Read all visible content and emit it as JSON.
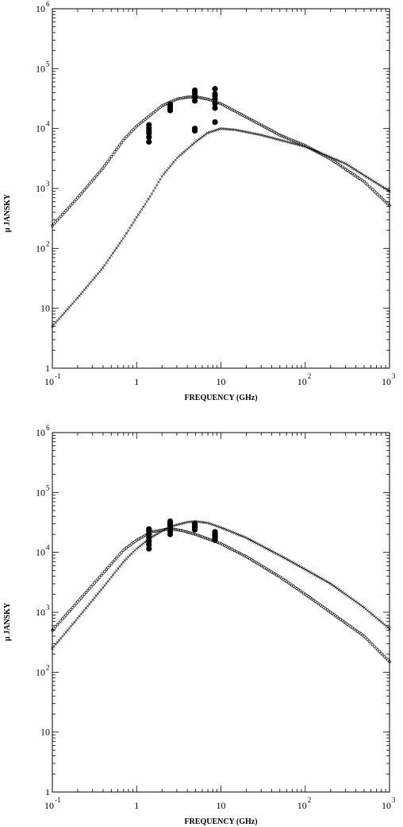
{
  "chart_data": [
    {
      "type": "scatter",
      "xscale": "log",
      "yscale": "log",
      "xlim": [
        0.1,
        1000
      ],
      "ylim": [
        1,
        1000000
      ],
      "xlabel": "FREQUENCY (GHz)",
      "ylabel": "µ JANSKY",
      "x_tick_labels": [
        {
          "base": "10",
          "exp": "-1"
        },
        {
          "base": "1",
          "exp": ""
        },
        {
          "base": "10",
          "exp": ""
        },
        {
          "base": "10",
          "exp": "2"
        },
        {
          "base": "10",
          "exp": "3"
        }
      ],
      "y_tick_labels": [
        {
          "base": "1",
          "exp": ""
        },
        {
          "base": "10",
          "exp": ""
        },
        {
          "base": "10",
          "exp": "2"
        },
        {
          "base": "10",
          "exp": "3"
        },
        {
          "base": "10",
          "exp": "4"
        },
        {
          "base": "10",
          "exp": "5"
        },
        {
          "base": "10",
          "exp": "6"
        }
      ],
      "series": [
        {
          "marker": "circle",
          "points": [
            [
              0.1,
              240
            ],
            [
              0.2,
              700
            ],
            [
              0.4,
              2200
            ],
            [
              0.7,
              6500
            ],
            [
              1.0,
              11000
            ],
            [
              1.4,
              16000
            ],
            [
              2.0,
              24000
            ],
            [
              3.0,
              31000
            ],
            [
              4.0,
              33500
            ],
            [
              5.0,
              34000
            ],
            [
              7.0,
              31000
            ],
            [
              10,
              26000
            ],
            [
              20,
              15500
            ],
            [
              50,
              7800
            ],
            [
              100,
              5200
            ],
            [
              200,
              3100
            ],
            [
              500,
              1300
            ],
            [
              1000,
              520
            ]
          ]
        },
        {
          "marker": "cross",
          "points": [
            [
              0.1,
              5
            ],
            [
              0.2,
              15
            ],
            [
              0.4,
              48
            ],
            [
              0.7,
              150
            ],
            [
              1.0,
              330
            ],
            [
              1.5,
              800
            ],
            [
              2.0,
              1600
            ],
            [
              3.0,
              3200
            ],
            [
              5.0,
              6000
            ],
            [
              7.0,
              8500
            ],
            [
              10,
              10000
            ],
            [
              15,
              9500
            ],
            [
              30,
              7800
            ],
            [
              100,
              5000
            ],
            [
              300,
              2600
            ],
            [
              1000,
              900
            ]
          ]
        },
        {
          "marker": "filled",
          "points": [
            [
              1.4,
              6000
            ],
            [
              1.4,
              7200
            ],
            [
              1.4,
              8300
            ],
            [
              1.4,
              9200
            ],
            [
              1.4,
              10200
            ],
            [
              1.4,
              11500
            ],
            [
              2.5,
              20000
            ],
            [
              2.5,
              22000
            ],
            [
              2.5,
              24000
            ],
            [
              2.5,
              25500
            ],
            [
              4.9,
              9200
            ],
            [
              4.9,
              10000
            ],
            [
              4.9,
              29000
            ],
            [
              4.9,
              33000
            ],
            [
              4.9,
              36000
            ],
            [
              4.9,
              40000
            ],
            [
              4.9,
              43500
            ],
            [
              8.5,
              12800
            ],
            [
              8.5,
              22000
            ],
            [
              8.5,
              26000
            ],
            [
              8.5,
              31000
            ],
            [
              8.5,
              35000
            ],
            [
              8.5,
              38000
            ],
            [
              8.5,
              46000
            ]
          ]
        }
      ]
    },
    {
      "type": "scatter",
      "xscale": "log",
      "yscale": "log",
      "xlim": [
        0.1,
        1000
      ],
      "ylim": [
        1,
        1000000
      ],
      "xlabel": "FREQUENCY (GHz)",
      "ylabel": "µ JANSKY",
      "x_tick_labels": [
        {
          "base": "10",
          "exp": "-1"
        },
        {
          "base": "1",
          "exp": ""
        },
        {
          "base": "10",
          "exp": ""
        },
        {
          "base": "10",
          "exp": "2"
        },
        {
          "base": "10",
          "exp": "3"
        }
      ],
      "y_tick_labels": [
        {
          "base": "1",
          "exp": ""
        },
        {
          "base": "10",
          "exp": ""
        },
        {
          "base": "10",
          "exp": "2"
        },
        {
          "base": "10",
          "exp": "3"
        },
        {
          "base": "10",
          "exp": "4"
        },
        {
          "base": "10",
          "exp": "5"
        },
        {
          "base": "10",
          "exp": "6"
        }
      ],
      "series": [
        {
          "marker": "circle",
          "points": [
            [
              0.1,
              500
            ],
            [
              0.2,
              1500
            ],
            [
              0.4,
              4500
            ],
            [
              0.7,
              11000
            ],
            [
              1.0,
              16000
            ],
            [
              1.5,
              22000
            ],
            [
              2.5,
              25000
            ],
            [
              3.5,
              23000
            ],
            [
              5.0,
              20000
            ],
            [
              10,
              14000
            ],
            [
              20,
              8500
            ],
            [
              50,
              3900
            ],
            [
              100,
              2000
            ],
            [
              200,
              1000
            ],
            [
              500,
              400
            ],
            [
              1000,
              150
            ]
          ]
        },
        {
          "marker": "cross",
          "points": [
            [
              0.1,
              250
            ],
            [
              0.2,
              800
            ],
            [
              0.4,
              2600
            ],
            [
              0.7,
              7000
            ],
            [
              1.0,
              11500
            ],
            [
              1.5,
              18000
            ],
            [
              2.5,
              27000
            ],
            [
              4.0,
              32000
            ],
            [
              5.0,
              33000
            ],
            [
              7.0,
              31000
            ],
            [
              10,
              26000
            ],
            [
              20,
              17500
            ],
            [
              50,
              8900
            ],
            [
              100,
              5200
            ],
            [
              200,
              3000
            ],
            [
              500,
              1200
            ],
            [
              1000,
              530
            ]
          ]
        },
        {
          "marker": "filled",
          "points": [
            [
              1.4,
              11500
            ],
            [
              1.4,
              13500
            ],
            [
              1.4,
              15500
            ],
            [
              1.4,
              17500
            ],
            [
              1.4,
              20000
            ],
            [
              1.4,
              22500
            ],
            [
              1.4,
              24500
            ],
            [
              2.5,
              20000
            ],
            [
              2.5,
              22500
            ],
            [
              2.5,
              25000
            ],
            [
              2.5,
              27000
            ],
            [
              2.5,
              29000
            ],
            [
              2.5,
              31000
            ],
            [
              2.5,
              33000
            ],
            [
              4.9,
              24000
            ],
            [
              4.9,
              26000
            ],
            [
              4.9,
              28000
            ],
            [
              4.9,
              30000
            ],
            [
              8.5,
              16000
            ],
            [
              8.5,
              17500
            ],
            [
              8.5,
              19000
            ],
            [
              8.5,
              20500
            ],
            [
              8.5,
              22000
            ]
          ]
        }
      ]
    }
  ]
}
